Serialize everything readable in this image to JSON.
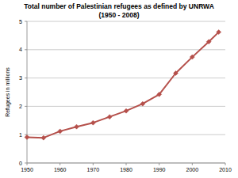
{
  "chart_data": {
    "type": "line",
    "title": "Total number of Palestinian refugees as defined by UNRWA",
    "subtitle": "(1950 - 2008)",
    "y_label": "Refugees in millions",
    "x": [
      1950,
      1955,
      1960,
      1965,
      1970,
      1975,
      1980,
      1985,
      1990,
      1995,
      2000,
      2005,
      2008
    ],
    "values": [
      0.91,
      0.89,
      1.12,
      1.28,
      1.42,
      1.63,
      1.84,
      2.09,
      2.42,
      3.17,
      3.74,
      4.28,
      4.62
    ],
    "color": "#b5504b",
    "marker": "diamond",
    "line_style": "solid",
    "xlim": [
      1950,
      2010
    ],
    "xticks": [
      1950,
      1960,
      1970,
      1980,
      1990,
      2000,
      2010
    ],
    "ylim": [
      0,
      5
    ],
    "yticks": [
      0,
      1,
      2,
      3,
      4,
      5
    ],
    "grid": true
  }
}
